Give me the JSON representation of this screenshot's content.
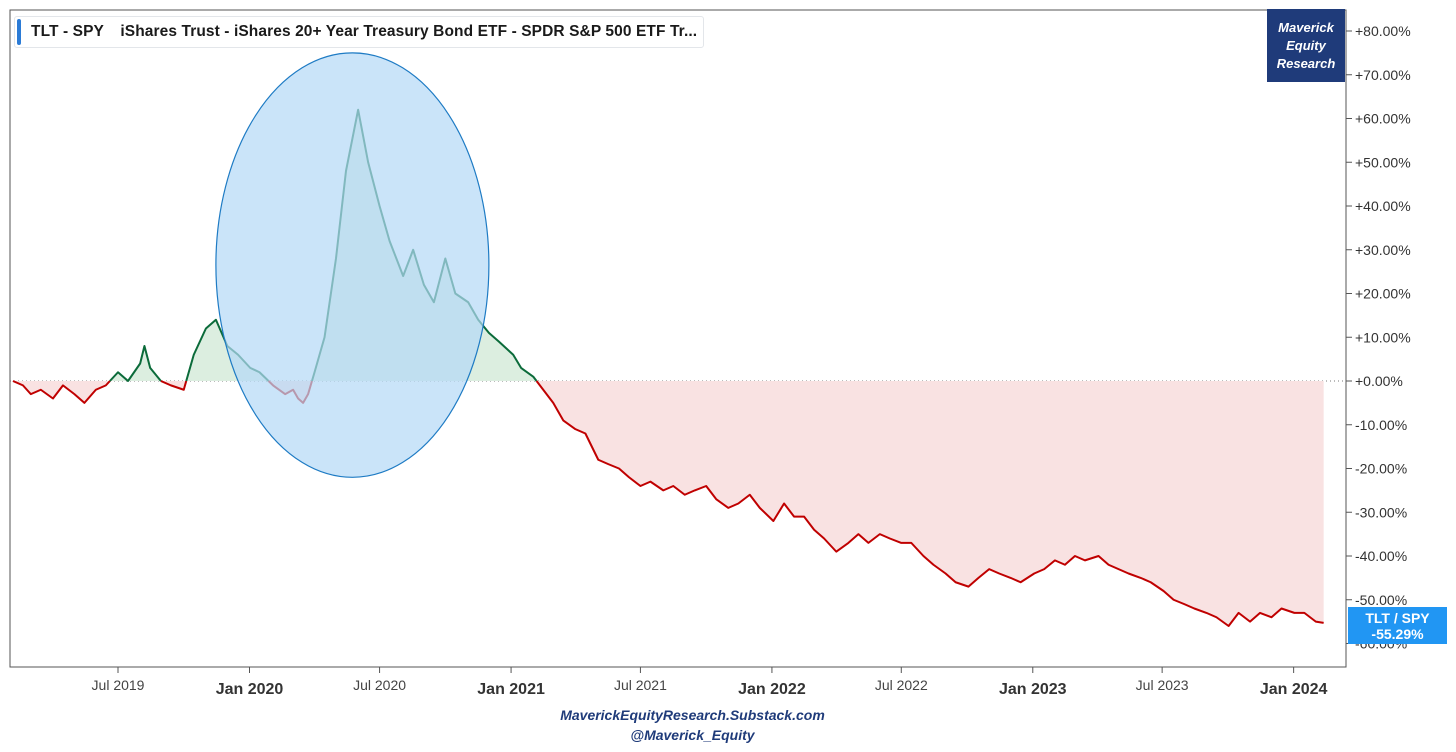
{
  "legend": {
    "ticker": "TLT - SPY",
    "description": "iShares Trust - iShares 20+ Year Treasury Bond ETF - SPDR S&P 500 ETF Tr..."
  },
  "brand": {
    "line1": "Maverick",
    "line2": "Equity",
    "line3": "Research"
  },
  "last_value": {
    "series": "TLT / SPY",
    "value": "-55.29%"
  },
  "footer": {
    "site": "MaverickEquityResearch.Substack.com",
    "handle": "@Maverick_Equity"
  },
  "colors": {
    "positive_line": "#0b6b3a",
    "positive_fill": "#dceee0",
    "negative_line": "#c00000",
    "negative_fill": "#f9e2e2",
    "highlight_fill": "#b3d9f7",
    "highlight_stroke": "#1e7bc4",
    "label_bg": "#2196f3",
    "brand_bg": "#1f3b7a"
  },
  "chart_data": {
    "type": "area",
    "baseline": 0,
    "grid": false,
    "ylim": [
      -60,
      80
    ],
    "y_ticks": [
      {
        "value": 80,
        "label": "+80.00%"
      },
      {
        "value": 70,
        "label": "+70.00%"
      },
      {
        "value": 60,
        "label": "+60.00%"
      },
      {
        "value": 50,
        "label": "+50.00%"
      },
      {
        "value": 40,
        "label": "+40.00%"
      },
      {
        "value": 30,
        "label": "+30.00%"
      },
      {
        "value": 20,
        "label": "+20.00%"
      },
      {
        "value": 10,
        "label": "+10.00%"
      },
      {
        "value": 0,
        "label": "+0.00%"
      },
      {
        "value": -10,
        "label": "-10.00%"
      },
      {
        "value": -20,
        "label": "-20.00%"
      },
      {
        "value": -30,
        "label": "-30.00%"
      },
      {
        "value": -40,
        "label": "-40.00%"
      },
      {
        "value": -50,
        "label": "-50.00%"
      },
      {
        "value": -60,
        "label": "-60.00%"
      }
    ],
    "x_ticks": [
      {
        "date": "2019-07-01",
        "label": "Jul 2019",
        "major": false
      },
      {
        "date": "2020-01-01",
        "label": "Jan 2020",
        "major": true
      },
      {
        "date": "2020-07-01",
        "label": "Jul 2020",
        "major": false
      },
      {
        "date": "2021-01-01",
        "label": "Jan 2021",
        "major": true
      },
      {
        "date": "2021-07-01",
        "label": "Jul 2021",
        "major": false
      },
      {
        "date": "2022-01-01",
        "label": "Jan 2022",
        "major": true
      },
      {
        "date": "2022-07-01",
        "label": "Jul 2022",
        "major": false
      },
      {
        "date": "2023-01-01",
        "label": "Jan 2023",
        "major": true
      },
      {
        "date": "2023-07-01",
        "label": "Jul 2023",
        "major": false
      },
      {
        "date": "2024-01-01",
        "label": "Jan 2024",
        "major": true
      }
    ],
    "highlight": {
      "x_start": "2019-11-15",
      "x_end": "2020-12-01",
      "y_min": -22,
      "y_max": 75
    },
    "series": [
      {
        "x": [
          "2019-02-04",
          "2019-02-18",
          "2019-03-01",
          "2019-03-15",
          "2019-04-01",
          "2019-04-15",
          "2019-05-01",
          "2019-05-15",
          "2019-05-31",
          "2019-06-14",
          "2019-07-01",
          "2019-07-15",
          "2019-08-01",
          "2019-08-07",
          "2019-08-15",
          "2019-08-30",
          "2019-09-13",
          "2019-10-01",
          "2019-10-15",
          "2019-11-01",
          "2019-11-15",
          "2019-12-01",
          "2019-12-16",
          "2020-01-02",
          "2020-01-15",
          "2020-02-03",
          "2020-02-20",
          "2020-03-02",
          "2020-03-09",
          "2020-03-16",
          "2020-03-23",
          "2020-04-01",
          "2020-04-15",
          "2020-05-01",
          "2020-05-15",
          "2020-06-01",
          "2020-06-15",
          "2020-07-01",
          "2020-07-15",
          "2020-08-03",
          "2020-08-17",
          "2020-09-01",
          "2020-09-15",
          "2020-10-01",
          "2020-10-15",
          "2020-11-02",
          "2020-11-16",
          "2020-12-01",
          "2020-12-15",
          "2021-01-04",
          "2021-01-15",
          "2021-02-01",
          "2021-02-15",
          "2021-03-01",
          "2021-03-15",
          "2021-04-01",
          "2021-04-15",
          "2021-05-03",
          "2021-05-17",
          "2021-06-01",
          "2021-06-15",
          "2021-07-01",
          "2021-07-15",
          "2021-08-02",
          "2021-08-16",
          "2021-09-01",
          "2021-09-15",
          "2021-10-01",
          "2021-10-15",
          "2021-11-01",
          "2021-11-15",
          "2021-12-01",
          "2021-12-15",
          "2022-01-03",
          "2022-01-18",
          "2022-02-01",
          "2022-02-15",
          "2022-03-01",
          "2022-03-15",
          "2022-04-01",
          "2022-04-18",
          "2022-05-02",
          "2022-05-16",
          "2022-06-01",
          "2022-06-15",
          "2022-07-01",
          "2022-07-15",
          "2022-08-01",
          "2022-08-15",
          "2022-09-01",
          "2022-09-15",
          "2022-10-03",
          "2022-10-17",
          "2022-11-01",
          "2022-11-15",
          "2022-12-01",
          "2022-12-15",
          "2023-01-03",
          "2023-01-17",
          "2023-02-01",
          "2023-02-15",
          "2023-03-01",
          "2023-03-15",
          "2023-04-03",
          "2023-04-17",
          "2023-05-01",
          "2023-05-15",
          "2023-06-01",
          "2023-06-15",
          "2023-07-03",
          "2023-07-17",
          "2023-08-01",
          "2023-08-15",
          "2023-09-01",
          "2023-09-15",
          "2023-10-02",
          "2023-10-16",
          "2023-11-01",
          "2023-11-15",
          "2023-12-01",
          "2023-12-15",
          "2024-01-02",
          "2024-01-16",
          "2024-02-01",
          "2024-02-12"
        ],
        "values": [
          0,
          -1,
          -3,
          -2,
          -4,
          -1,
          -3,
          -5,
          -2,
          -1,
          2,
          0,
          4,
          8,
          3,
          0,
          -1,
          -2,
          6,
          12,
          14,
          8,
          6,
          3,
          2,
          -1,
          -3,
          -2,
          -4,
          -5,
          -3,
          2,
          10,
          28,
          48,
          62,
          50,
          40,
          32,
          24,
          30,
          22,
          18,
          28,
          20,
          18,
          14,
          11,
          9,
          6,
          3,
          1,
          -2,
          -5,
          -9,
          -11,
          -12,
          -18,
          -19,
          -20,
          -22,
          -24,
          -23,
          -25,
          -24,
          -26,
          -25,
          -24,
          -27,
          -29,
          -28,
          -26,
          -29,
          -32,
          -28,
          -31,
          -31,
          -34,
          -36,
          -39,
          -37,
          -35,
          -37,
          -35,
          -36,
          -37,
          -37,
          -40,
          -42,
          -44,
          -46,
          -47,
          -45,
          -43,
          -44,
          -45,
          -46,
          -44,
          -43,
          -41,
          -42,
          -40,
          -41,
          -40,
          -42,
          -43,
          -44,
          -45,
          -46,
          -48,
          -50,
          -51,
          -52,
          -53,
          -54,
          -56,
          -53,
          -55,
          -53,
          -54,
          -52,
          -53,
          -53,
          -55,
          -55.29
        ]
      }
    ]
  }
}
